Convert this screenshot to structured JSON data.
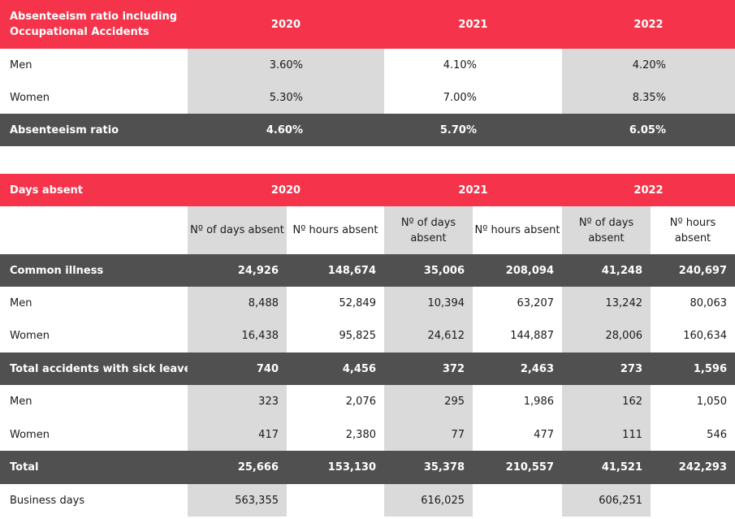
{
  "ratio_table": {
    "title": "Absenteeism ratio including Occupational Accidents",
    "years": [
      "2020",
      "2021",
      "2022"
    ],
    "rows": [
      {
        "label": "Men",
        "values": [
          "3.60%",
          "4.10%",
          "4.20%"
        ]
      },
      {
        "label": "Women",
        "values": [
          "5.30%",
          "7.00%",
          "8.35%"
        ]
      }
    ],
    "total": {
      "label": "Absenteeism ratio",
      "values": [
        "4.60%",
        "5.70%",
        "6.05%"
      ]
    }
  },
  "days_table": {
    "title": "Days absent",
    "years": [
      "2020",
      "2021",
      "2022"
    ],
    "sub_headers": [
      "Nº of days absent",
      "Nº hours absent"
    ],
    "rows": [
      {
        "kind": "dark",
        "label": "Common illness",
        "values": [
          "24,926",
          "148,674",
          "35,006",
          "208,094",
          "41,248",
          "240,697"
        ]
      },
      {
        "kind": "plain",
        "label": "Men",
        "values": [
          "8,488",
          "52,849",
          "10,394",
          "63,207",
          "13,242",
          "80,063"
        ]
      },
      {
        "kind": "plain",
        "label": "Women",
        "values": [
          "16,438",
          "95,825",
          "24,612",
          "144,887",
          "28,006",
          "160,634"
        ]
      },
      {
        "kind": "dark",
        "label": "Total accidents with sick leave",
        "values": [
          "740",
          "4,456",
          "372",
          "2,463",
          "273",
          "1,596"
        ]
      },
      {
        "kind": "plain",
        "label": "Men",
        "values": [
          "323",
          "2,076",
          "295",
          "1,986",
          "162",
          "1,050"
        ]
      },
      {
        "kind": "plain",
        "label": "Women",
        "values": [
          "417",
          "2,380",
          "77",
          "477",
          "111",
          "546"
        ]
      },
      {
        "kind": "dark",
        "label": "Total",
        "values": [
          "25,666",
          "153,130",
          "35,378",
          "210,557",
          "41,521",
          "242,293"
        ]
      },
      {
        "kind": "plain",
        "label": "Business days",
        "values": [
          "563,355",
          "",
          "616,025",
          "",
          "606,251",
          ""
        ]
      }
    ]
  }
}
